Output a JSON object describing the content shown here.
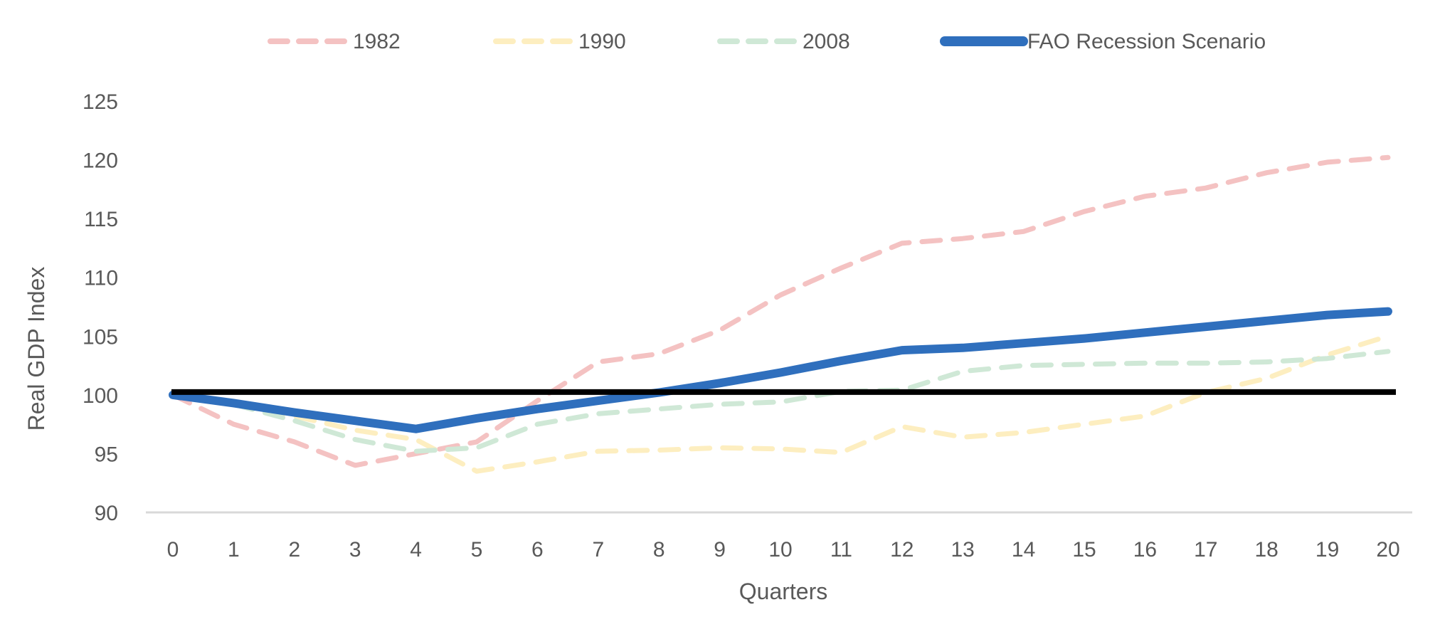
{
  "chart_data": {
    "type": "line",
    "title": "",
    "xlabel": "Quarters",
    "ylabel": "Real GDP Index",
    "x": [
      0,
      1,
      2,
      3,
      4,
      5,
      6,
      7,
      8,
      9,
      10,
      11,
      12,
      13,
      14,
      15,
      16,
      17,
      18,
      19,
      20
    ],
    "ylim": [
      90,
      125
    ],
    "yticks": [
      90,
      95,
      100,
      105,
      110,
      115,
      120,
      125
    ],
    "grid": false,
    "legend_position": "top",
    "reference_line": {
      "y": 100,
      "color": "#000000"
    },
    "series": [
      {
        "name": "1982",
        "style": "dashed",
        "color": "#f4c2c2",
        "values": [
          100,
          97.5,
          96,
          94,
          95,
          96,
          99.5,
          102.8,
          103.5,
          105.5,
          108.5,
          110.8,
          112.9,
          113.3,
          113.9,
          115.6,
          116.9,
          117.6,
          118.9,
          119.8,
          120.2
        ]
      },
      {
        "name": "1990",
        "style": "dashed",
        "color": "#fdeec0",
        "values": [
          100,
          99.3,
          98.2,
          97,
          96.2,
          93.5,
          94.3,
          95.2,
          95.3,
          95.5,
          95.4,
          95.1,
          97.3,
          96.4,
          96.8,
          97.5,
          98.2,
          100.2,
          101.4,
          103.4,
          105
        ]
      },
      {
        "name": "2008",
        "style": "dashed",
        "color": "#cfe8d6",
        "values": [
          100,
          99.2,
          97.8,
          96.2,
          95.2,
          95.5,
          97.5,
          98.4,
          98.8,
          99.2,
          99.4,
          100.3,
          100.4,
          102,
          102.5,
          102.6,
          102.7,
          102.7,
          102.8,
          103.1,
          103.7
        ]
      },
      {
        "name": "FAO Recession Scenario",
        "style": "solid",
        "color": "#2f6fbd",
        "values": [
          100,
          99.3,
          98.5,
          97.8,
          97.1,
          98,
          98.8,
          99.5,
          100.2,
          101,
          101.9,
          102.9,
          103.8,
          104,
          104.4,
          104.8,
          105.3,
          105.8,
          106.3,
          106.8,
          107.1
        ]
      }
    ]
  }
}
